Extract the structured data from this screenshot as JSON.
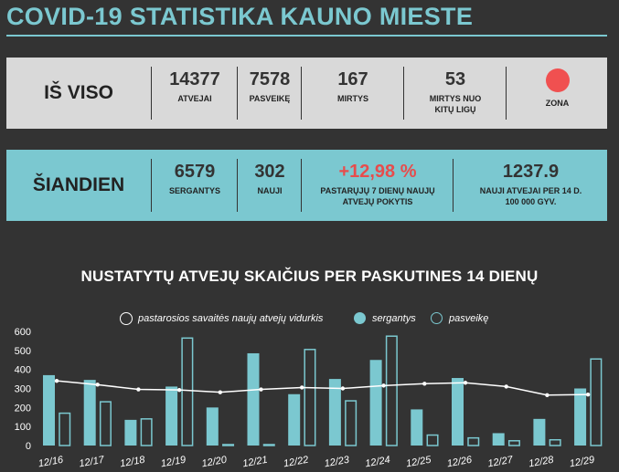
{
  "title": "COVID-19 STATISTIKA KAUNO MIESTE",
  "total": {
    "label": "IŠ VISO",
    "stats": [
      {
        "num": "14377",
        "label": "ATVEJAI"
      },
      {
        "num": "7578",
        "label": "PASVEIKĘ"
      },
      {
        "num": "167",
        "label": "MIRTYS"
      },
      {
        "num": "53",
        "label": "MIRTYS NUO\nKITŲ LIGŲ"
      }
    ],
    "zone_label": "ZONA",
    "zone_color": "#f05050"
  },
  "today": {
    "label": "ŠIANDIEN",
    "stats": [
      {
        "num": "6579",
        "label": "SERGANTYS"
      },
      {
        "num": "302",
        "label": "NAUJI"
      },
      {
        "num": "+12,98 %",
        "label": "PASTARŲJŲ 7 DIENŲ NAUJŲ\nATVEJŲ POKYTIS"
      },
      {
        "num": "1237.9",
        "label": "NAUJI ATVEJAI PER 14 D.\n100 000 GYV."
      }
    ]
  },
  "colors": {
    "accent": "#7bc8d0",
    "negative": "#e74c4c",
    "background": "#333333",
    "panel": "#d9d9d9"
  },
  "chart_data": {
    "type": "bar",
    "title": "NUSTATYTŲ ATVEJŲ SKAIČIUS PER PASKUTINES 14 DIENŲ",
    "categories": [
      "12/16",
      "12/17",
      "12/18",
      "12/19",
      "12/20",
      "12/21",
      "12/22",
      "12/23",
      "12/24",
      "12/25",
      "12/26",
      "12/27",
      "12/28",
      "12/29"
    ],
    "series": [
      {
        "name": "sergantys",
        "kind": "bar-filled",
        "values": [
          370,
          345,
          135,
          310,
          200,
          485,
          270,
          350,
          450,
          190,
          355,
          65,
          140,
          300
        ]
      },
      {
        "name": "pasveikę",
        "kind": "bar-hollow",
        "values": [
          170,
          230,
          140,
          565,
          5,
          5,
          505,
          235,
          575,
          55,
          40,
          25,
          30,
          455
        ]
      },
      {
        "name": "pastarosios savaitės naujų atvejų vidurkis",
        "kind": "line",
        "values": [
          340,
          320,
          295,
          292,
          280,
          295,
          305,
          300,
          315,
          325,
          330,
          310,
          265,
          268
        ]
      }
    ],
    "yticks": [
      0,
      100,
      200,
      300,
      400,
      500,
      600
    ],
    "ylim": [
      0,
      600
    ],
    "grid": false,
    "legend_position": "top"
  }
}
